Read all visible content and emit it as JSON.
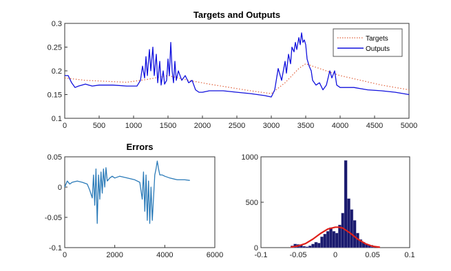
{
  "chart_data": [
    {
      "type": "line",
      "title": "Targets and Outputs",
      "xlim": [
        0,
        5000
      ],
      "ylim": [
        0.1,
        0.3
      ],
      "xticks": [
        "0",
        "500",
        "1000",
        "1500",
        "2000",
        "2500",
        "3000",
        "3500",
        "4000",
        "4500",
        "5000"
      ],
      "yticks": [
        "0.1",
        "0.15",
        "0.2",
        "0.25",
        "0.3"
      ],
      "legend_position": "top-right",
      "colors": {
        "targets": "#e0603a",
        "outputs": "#1010dd"
      },
      "series": [
        {
          "name": "Targets",
          "style": "dotted",
          "x": [
            0,
            300,
            600,
            900,
            1200,
            1500,
            1800,
            2100,
            2400,
            2700,
            3000,
            3200,
            3400,
            3500,
            3700,
            4000,
            4300,
            4600,
            5000
          ],
          "y": [
            0.185,
            0.18,
            0.178,
            0.176,
            0.182,
            0.19,
            0.18,
            0.172,
            0.165,
            0.158,
            0.152,
            0.175,
            0.205,
            0.215,
            0.205,
            0.19,
            0.18,
            0.17,
            0.16
          ]
        },
        {
          "name": "Outputs",
          "style": "solid",
          "x": [
            0,
            50,
            100,
            150,
            200,
            250,
            300,
            400,
            500,
            700,
            900,
            1050,
            1100,
            1130,
            1160,
            1180,
            1200,
            1230,
            1250,
            1280,
            1300,
            1330,
            1350,
            1380,
            1400,
            1430,
            1450,
            1480,
            1500,
            1520,
            1540,
            1560,
            1580,
            1600,
            1620,
            1650,
            1700,
            1750,
            1800,
            1850,
            1900,
            1950,
            2000,
            2100,
            2300,
            2500,
            2700,
            2900,
            3000,
            3050,
            3100,
            3150,
            3200,
            3220,
            3250,
            3280,
            3300,
            3330,
            3350,
            3370,
            3400,
            3420,
            3440,
            3460,
            3480,
            3500,
            3520,
            3550,
            3580,
            3600,
            3650,
            3700,
            3750,
            3800,
            3850,
            3880,
            3920,
            3950,
            4000,
            4200,
            4400,
            4600,
            4800,
            5000
          ],
          "y": [
            0.19,
            0.19,
            0.175,
            0.165,
            0.168,
            0.17,
            0.172,
            0.168,
            0.17,
            0.17,
            0.168,
            0.168,
            0.18,
            0.21,
            0.185,
            0.23,
            0.19,
            0.245,
            0.2,
            0.25,
            0.19,
            0.235,
            0.175,
            0.22,
            0.17,
            0.2,
            0.172,
            0.18,
            0.225,
            0.19,
            0.26,
            0.2,
            0.175,
            0.22,
            0.18,
            0.2,
            0.18,
            0.19,
            0.175,
            0.18,
            0.16,
            0.155,
            0.155,
            0.158,
            0.158,
            0.155,
            0.152,
            0.148,
            0.145,
            0.16,
            0.205,
            0.18,
            0.22,
            0.195,
            0.235,
            0.215,
            0.25,
            0.24,
            0.26,
            0.245,
            0.27,
            0.255,
            0.28,
            0.26,
            0.265,
            0.255,
            0.225,
            0.21,
            0.2,
            0.18,
            0.17,
            0.175,
            0.16,
            0.17,
            0.2,
            0.185,
            0.2,
            0.17,
            0.165,
            0.165,
            0.16,
            0.158,
            0.155,
            0.15
          ]
        }
      ]
    },
    {
      "type": "line",
      "title": "Errors",
      "xlim": [
        0,
        6000
      ],
      "ylim": [
        -0.1,
        0.05
      ],
      "xticks": [
        "0",
        "2000",
        "4000",
        "6000"
      ],
      "yticks": [
        "-0.1",
        "-0.05",
        "0",
        "0.05"
      ],
      "colors": {
        "line": "#2a7ab8"
      },
      "series": [
        {
          "x": [
            0,
            100,
            200,
            300,
            500,
            700,
            900,
            1000,
            1100,
            1150,
            1200,
            1250,
            1300,
            1350,
            1400,
            1450,
            1500,
            1550,
            1600,
            1650,
            1700,
            1800,
            1900,
            2000,
            2200,
            2500,
            2800,
            3000,
            3100,
            3150,
            3200,
            3250,
            3300,
            3350,
            3400,
            3450,
            3500,
            3600,
            3650,
            3700,
            3750,
            3800,
            3900,
            4000,
            4200,
            4500,
            4800,
            5000
          ],
          "y": [
            0.0,
            0.01,
            0.005,
            0.008,
            0.01,
            0.008,
            0.005,
            -0.005,
            -0.018,
            0.02,
            -0.03,
            0.03,
            -0.06,
            0.02,
            -0.02,
            0.025,
            -0.01,
            0.03,
            0.0,
            0.032,
            0.01,
            0.015,
            0.018,
            0.015,
            0.018,
            0.015,
            0.012,
            0.008,
            -0.02,
            0.025,
            -0.04,
            0.02,
            -0.055,
            0.01,
            -0.06,
            0.0,
            -0.055,
            0.02,
            0.03,
            0.043,
            0.03,
            0.02,
            0.02,
            0.018,
            0.015,
            0.012,
            0.012,
            0.011
          ]
        }
      ]
    },
    {
      "type": "bar",
      "subtype": "histogram",
      "title": "",
      "xlim": [
        -0.1,
        0.1
      ],
      "ylim": [
        0,
        1000
      ],
      "xticks": [
        "-0.1",
        "-0.05",
        "0",
        "0.05",
        "0.1"
      ],
      "yticks": [
        "0",
        "500",
        "1000"
      ],
      "colors": {
        "bars": "#1a1a6e",
        "edges": "#8a8ab8",
        "fit": "#e0201a"
      },
      "bins": [
        -0.06,
        -0.056,
        -0.052,
        -0.048,
        -0.044,
        -0.04,
        -0.036,
        -0.032,
        -0.028,
        -0.024,
        -0.02,
        -0.016,
        -0.012,
        -0.008,
        -0.004,
        0.0,
        0.004,
        0.008,
        0.012,
        0.016,
        0.02,
        0.024,
        0.028,
        0.032,
        0.036,
        0.04,
        0.044,
        0.048
      ],
      "counts": [
        20,
        40,
        35,
        30,
        15,
        10,
        20,
        40,
        60,
        50,
        120,
        150,
        180,
        220,
        180,
        160,
        250,
        380,
        960,
        540,
        420,
        300,
        160,
        90,
        60,
        40,
        25,
        10
      ],
      "fit": {
        "x": [
          -0.06,
          -0.05,
          -0.04,
          -0.03,
          -0.02,
          -0.01,
          0.0,
          0.005,
          0.01,
          0.02,
          0.03,
          0.04,
          0.05,
          0.06
        ],
        "y": [
          5,
          18,
          45,
          95,
          155,
          205,
          225,
          225,
          215,
          160,
          95,
          45,
          15,
          4
        ]
      }
    }
  ]
}
